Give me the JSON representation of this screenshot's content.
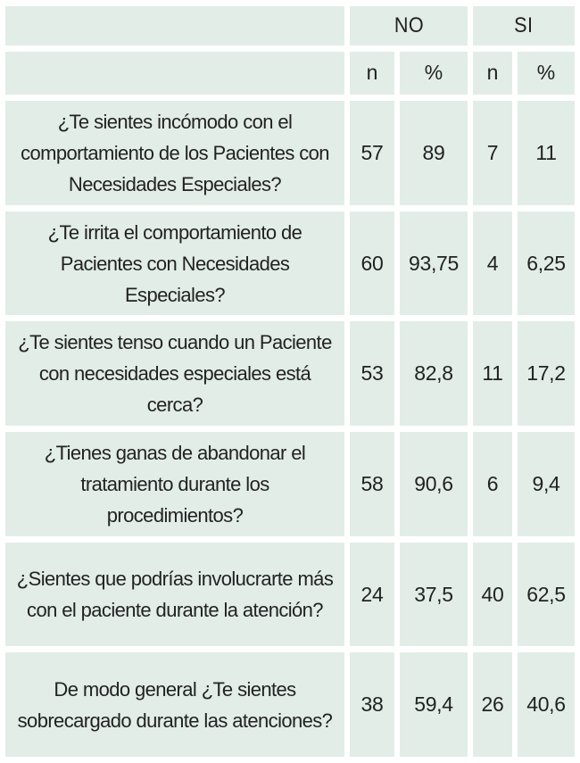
{
  "header": {
    "groups": [
      "NO",
      "SI"
    ],
    "subheaders": [
      "n",
      "%",
      "n",
      "%"
    ]
  },
  "rows": [
    {
      "question": "¿Te sientes incómodo con el comportamiento de los Pacientes con Necesidades Especiales?",
      "no_n": "57",
      "no_pct": "89",
      "si_n": "7",
      "si_pct": "11"
    },
    {
      "question": "¿Te irrita el comportamiento de Pacientes con Necesidades Especiales?",
      "no_n": "60",
      "no_pct": "93,75",
      "si_n": "4",
      "si_pct": "6,25"
    },
    {
      "question": "¿Te sientes tenso cuando un Paciente con necesidades especiales está cerca?",
      "no_n": "53",
      "no_pct": "82,8",
      "si_n": "11",
      "si_pct": "17,2"
    },
    {
      "question": "¿Tienes ganas de abandonar el tratamiento durante los procedimientos?",
      "no_n": "58",
      "no_pct": "90,6",
      "si_n": "6",
      "si_pct": "9,4"
    },
    {
      "question": "¿Sientes que podrías involucrarte más con el paciente durante la atención?",
      "no_n": "24",
      "no_pct": "37,5",
      "si_n": "40",
      "si_pct": "62,5"
    },
    {
      "question": "De modo general ¿Te sientes sobrecargado durante las atenciones?",
      "no_n": "38",
      "no_pct": "59,4",
      "si_n": "26",
      "si_pct": "40,6"
    }
  ]
}
